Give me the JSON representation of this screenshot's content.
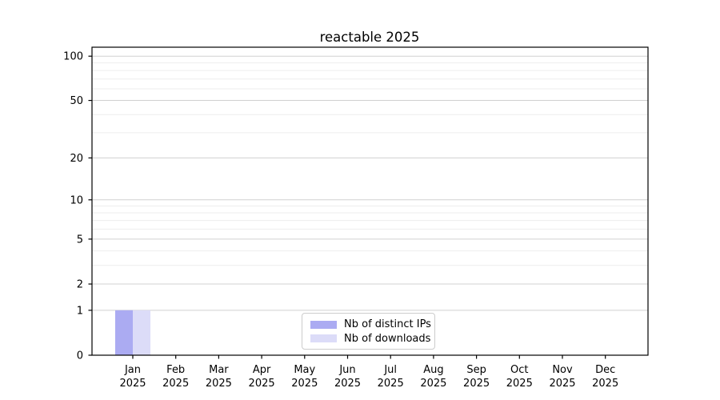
{
  "chart_data": {
    "type": "bar",
    "title": "reactable 2025",
    "categories": [
      "Jan 2025",
      "Feb 2025",
      "Mar 2025",
      "Apr 2025",
      "May 2025",
      "Jun 2025",
      "Jul 2025",
      "Aug 2025",
      "Sep 2025",
      "Oct 2025",
      "Nov 2025",
      "Dec 2025"
    ],
    "series": [
      {
        "name": "Nb of distinct IPs",
        "color": "#ababf2",
        "values": [
          1,
          0,
          0,
          0,
          0,
          0,
          0,
          0,
          0,
          0,
          0,
          0
        ]
      },
      {
        "name": "Nb of downloads",
        "color": "#dcdcf8",
        "values": [
          1,
          0,
          0,
          0,
          0,
          0,
          0,
          0,
          0,
          0,
          0,
          0
        ]
      }
    ],
    "xlabel": "",
    "ylabel": "",
    "yscale": "log1p",
    "ylim": [
      0,
      115
    ],
    "y_major_ticks": [
      0,
      1,
      2,
      5,
      10,
      20,
      50,
      100
    ],
    "y_minor_gridlines": [
      3,
      4,
      6,
      7,
      8,
      9,
      30,
      40,
      60,
      70,
      80,
      90
    ],
    "grid": true,
    "legend_position": "lower center"
  },
  "colors": {
    "background": "#ffffff",
    "axis_line": "#000000",
    "major_grid": "#d0d0d0",
    "minor_grid": "#ededed",
    "text": "#000000",
    "legend_border": "#cccccc"
  }
}
